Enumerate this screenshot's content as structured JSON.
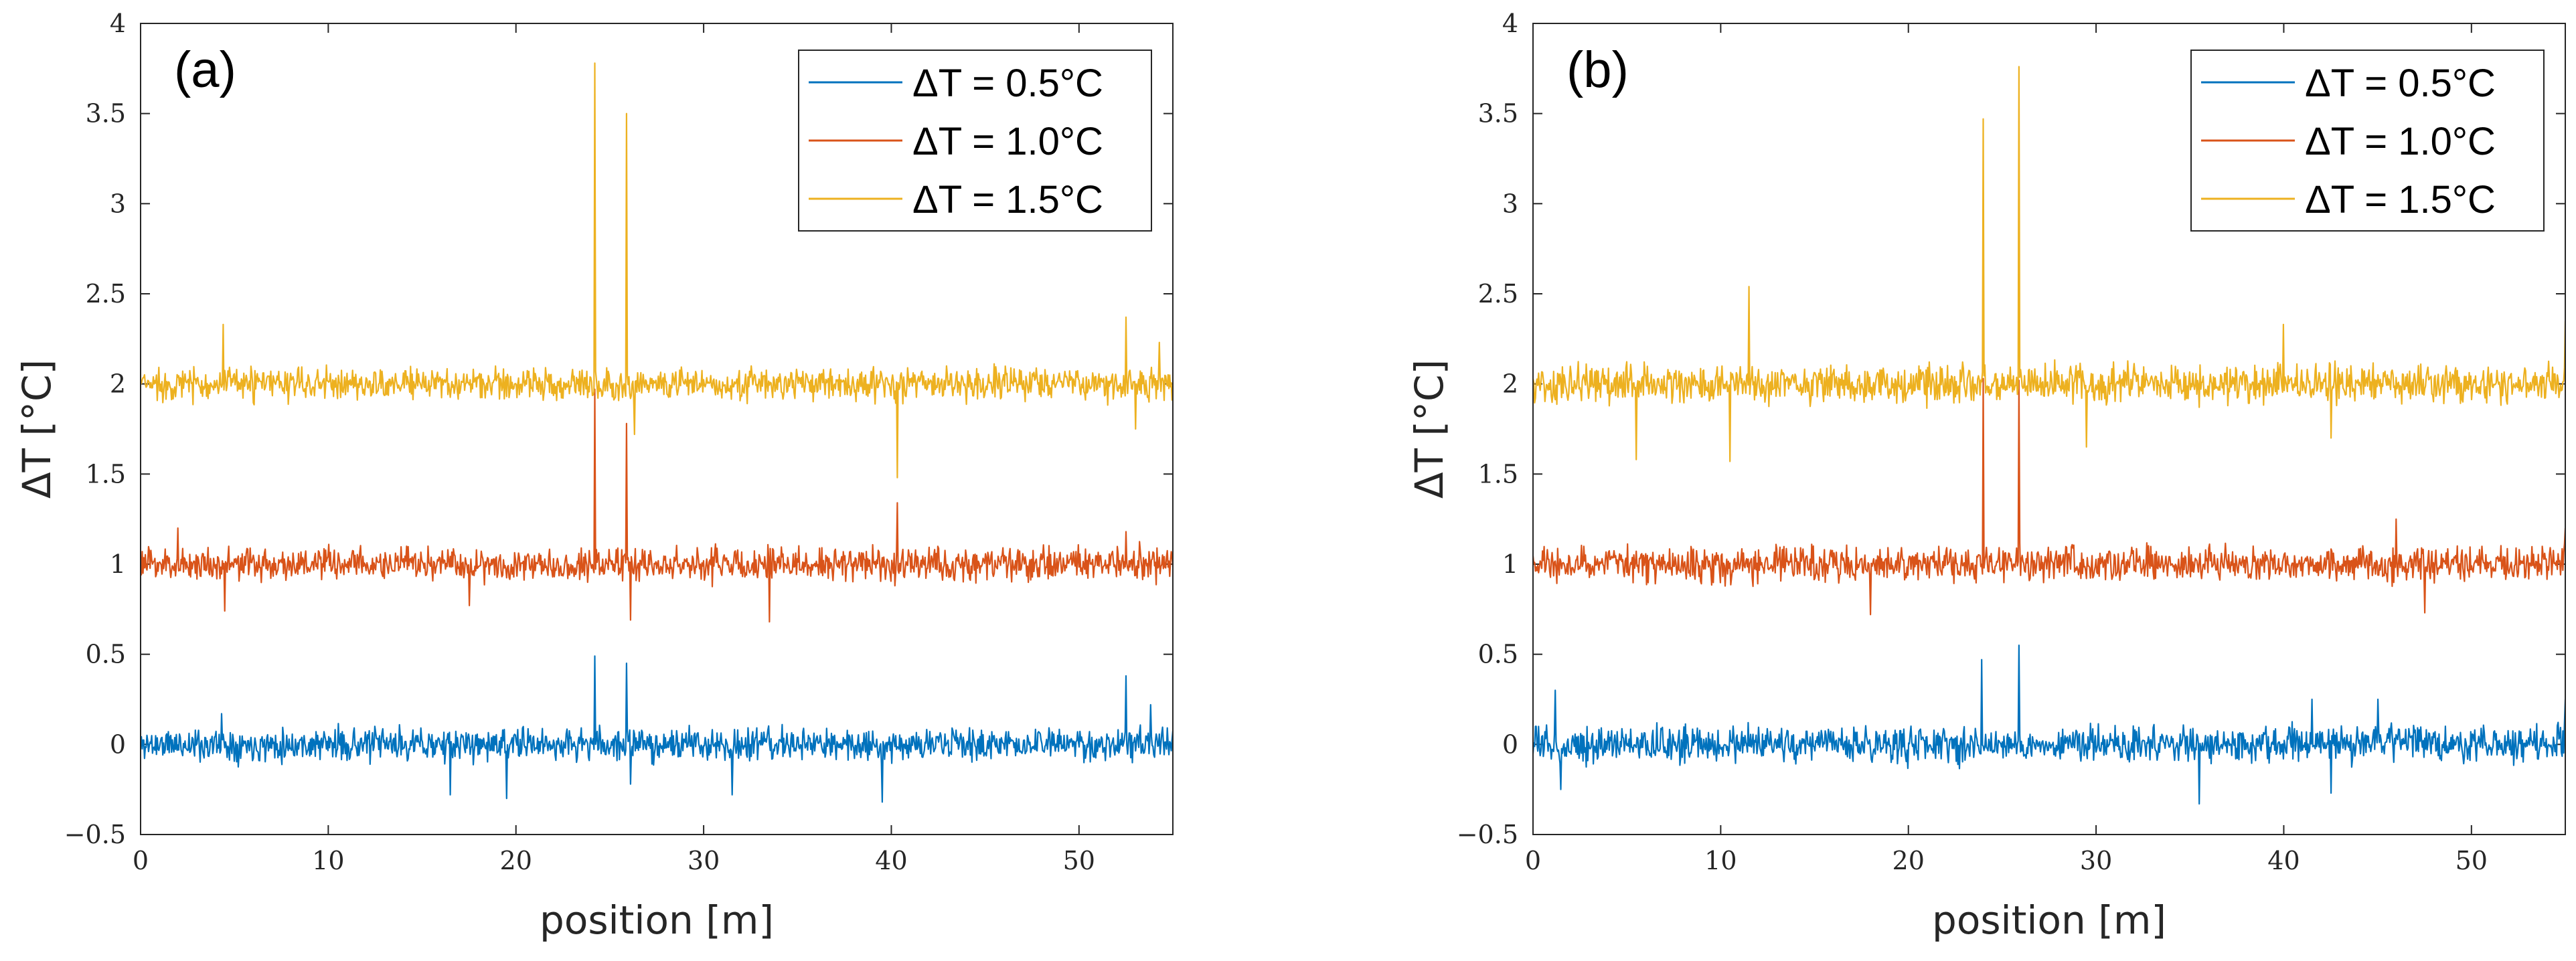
{
  "chart_data": [
    {
      "type": "line",
      "panel_label": "(a)",
      "xlabel": "position  [m]",
      "ylabel": "ΔT  [°C]",
      "xlim": [
        0,
        55
      ],
      "ylim": [
        -0.5,
        4
      ],
      "xticks": [
        0,
        10,
        20,
        30,
        40,
        50
      ],
      "yticks": [
        -0.5,
        0,
        0.5,
        1,
        1.5,
        2,
        2.5,
        3,
        3.5,
        4
      ],
      "ytick_labels": [
        "−0.5",
        "0",
        "0.5",
        "1",
        "1.5",
        "2",
        "2.5",
        "3",
        "3.5",
        "4"
      ],
      "legend_position": "top-right",
      "series": [
        {
          "name": "ΔT = 0.5°C",
          "color": "#0072BD",
          "baseline": 0.0,
          "noise": 0.055,
          "seed": 11,
          "spikes": [
            [
              4.3,
              0.17
            ],
            [
              16.5,
              -0.28
            ],
            [
              19.5,
              -0.3
            ],
            [
              24.2,
              0.49
            ],
            [
              25.9,
              0.45
            ],
            [
              26.1,
              -0.22
            ],
            [
              31.5,
              -0.28
            ],
            [
              39.5,
              -0.32
            ],
            [
              52.5,
              0.38
            ],
            [
              53.8,
              0.22
            ]
          ]
        },
        {
          "name": "ΔT = 1.0°C",
          "color": "#D95319",
          "baseline": 1.0,
          "noise": 0.055,
          "seed": 23,
          "spikes": [
            [
              2.0,
              1.2
            ],
            [
              4.5,
              0.74
            ],
            [
              17.5,
              0.77
            ],
            [
              24.2,
              1.97
            ],
            [
              25.9,
              1.78
            ],
            [
              26.1,
              0.69
            ],
            [
              33.5,
              0.68
            ],
            [
              40.3,
              1.34
            ],
            [
              52.5,
              1.18
            ]
          ]
        },
        {
          "name": "ΔT = 1.5°C",
          "color": "#EDB120",
          "baseline": 2.0,
          "noise": 0.055,
          "seed": 37,
          "spikes": [
            [
              4.4,
              2.33
            ],
            [
              24.2,
              3.78
            ],
            [
              25.9,
              3.5
            ],
            [
              26.3,
              1.72
            ],
            [
              40.3,
              1.48
            ],
            [
              52.5,
              2.37
            ],
            [
              53.0,
              1.75
            ],
            [
              54.3,
              2.23
            ]
          ]
        }
      ]
    },
    {
      "type": "line",
      "panel_label": "(b)",
      "xlabel": "position  [m]",
      "ylabel": "ΔT  [°C]",
      "xlim": [
        0,
        55
      ],
      "ylim": [
        -0.5,
        4
      ],
      "xticks": [
        0,
        10,
        20,
        30,
        40,
        50
      ],
      "yticks": [
        -0.5,
        0,
        0.5,
        1,
        1.5,
        2,
        2.5,
        3,
        3.5,
        4
      ],
      "ytick_labels": [
        "−0.5",
        "0",
        "0.5",
        "1",
        "1.5",
        "2",
        "2.5",
        "3",
        "3.5",
        "4"
      ],
      "legend_position": "top-right",
      "series": [
        {
          "name": "ΔT = 0.5°C",
          "color": "#0072BD",
          "baseline": 0.0,
          "noise": 0.06,
          "seed": 53,
          "spikes": [
            [
              1.2,
              0.3
            ],
            [
              1.5,
              -0.25
            ],
            [
              23.9,
              0.47
            ],
            [
              25.9,
              0.55
            ],
            [
              35.5,
              -0.33
            ],
            [
              41.5,
              0.25
            ],
            [
              42.5,
              -0.27
            ],
            [
              45.0,
              0.25
            ],
            [
              55.0,
              0.25
            ]
          ]
        },
        {
          "name": "ΔT = 1.0°C",
          "color": "#D95319",
          "baseline": 1.0,
          "noise": 0.06,
          "seed": 67,
          "spikes": [
            [
              18.0,
              0.72
            ],
            [
              24.0,
              2.03
            ],
            [
              25.9,
              2.02
            ],
            [
              46.0,
              1.25
            ],
            [
              47.5,
              0.73
            ],
            [
              55.0,
              1.2
            ]
          ]
        },
        {
          "name": "ΔT = 1.5°C",
          "color": "#EDB120",
          "baseline": 2.0,
          "noise": 0.065,
          "seed": 79,
          "spikes": [
            [
              5.5,
              1.58
            ],
            [
              10.5,
              1.57
            ],
            [
              11.5,
              2.54
            ],
            [
              24.0,
              3.47
            ],
            [
              25.9,
              3.76
            ],
            [
              29.5,
              1.65
            ],
            [
              40.0,
              2.33
            ],
            [
              42.5,
              1.7
            ],
            [
              55.0,
              2.35
            ]
          ]
        }
      ]
    }
  ]
}
